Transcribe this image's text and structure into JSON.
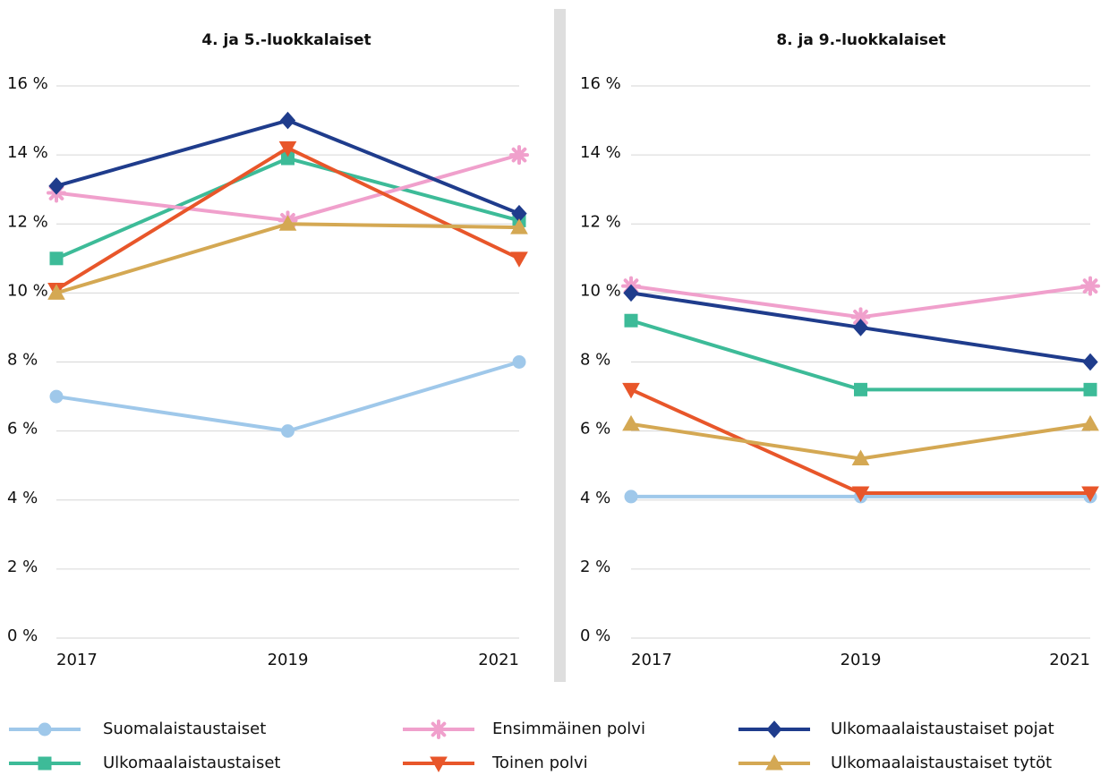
{
  "chart_data": [
    {
      "type": "line",
      "title": "4. ja 5.-luokkalaiset",
      "categories": [
        "2017",
        "2019",
        "2021"
      ],
      "ylim": [
        0,
        16
      ],
      "yticks": [
        {
          "value": 0,
          "label": "0 %"
        },
        {
          "value": 2,
          "label": "2 %"
        },
        {
          "value": 4,
          "label": "4 %"
        },
        {
          "value": 6,
          "label": "6 %"
        },
        {
          "value": 8,
          "label": "8 %"
        },
        {
          "value": 10,
          "label": "10 %"
        },
        {
          "value": 12,
          "label": "12 %"
        },
        {
          "value": 14,
          "label": "14 %"
        },
        {
          "value": 16,
          "label": "16 %"
        }
      ],
      "grid": true,
      "series": [
        {
          "name": "Suomalaistaustaiset",
          "color": "#9fc8ea",
          "marker": "circle",
          "values": [
            7,
            6,
            8
          ]
        },
        {
          "name": "Ulkomaalaistaustaiset",
          "color": "#3dbb98",
          "marker": "square",
          "values": [
            11,
            13.9,
            12.1
          ]
        },
        {
          "name": "Ensimmäinen polvi",
          "color": "#f0a0cc",
          "marker": "asterisk",
          "values": [
            12.9,
            12.1,
            14
          ]
        },
        {
          "name": "Toinen polvi",
          "color": "#e8562a",
          "marker": "triangle-down",
          "values": [
            10.1,
            14.2,
            11
          ]
        },
        {
          "name": "Ulkomaalaistaustaiset pojat",
          "color": "#1f3c8c",
          "marker": "diamond",
          "values": [
            13.1,
            15,
            12.3
          ]
        },
        {
          "name": "Ulkomaalaistaustaiset tytöt",
          "color": "#d4a853",
          "marker": "triangle-up",
          "values": [
            10,
            12,
            11.9
          ]
        }
      ]
    },
    {
      "type": "line",
      "title": "8. ja 9.-luokkalaiset",
      "categories": [
        "2017",
        "2019",
        "2021"
      ],
      "ylim": [
        0,
        16
      ],
      "yticks": [
        {
          "value": 0,
          "label": "0 %"
        },
        {
          "value": 2,
          "label": "2 %"
        },
        {
          "value": 4,
          "label": "4 %"
        },
        {
          "value": 6,
          "label": "6 %"
        },
        {
          "value": 8,
          "label": "8 %"
        },
        {
          "value": 10,
          "label": "10 %"
        },
        {
          "value": 12,
          "label": "12 %"
        },
        {
          "value": 14,
          "label": "14 %"
        },
        {
          "value": 16,
          "label": "16 %"
        }
      ],
      "grid": true,
      "series": [
        {
          "color": "#9fc8ea",
          "marker": "circle",
          "values": [
            4.1,
            4.1,
            4.1
          ]
        },
        {
          "color": "#3dbb98",
          "marker": "square",
          "values": [
            9.2,
            7.2,
            7.2
          ]
        },
        {
          "color": "#f0a0cc",
          "marker": "asterisk",
          "values": [
            10.2,
            9.3,
            10.2
          ]
        },
        {
          "color": "#e8562a",
          "marker": "triangle-down",
          "values": [
            7.2,
            4.2,
            4.2
          ]
        },
        {
          "color": "#1f3c8c",
          "marker": "diamond",
          "values": [
            10,
            9,
            8
          ]
        },
        {
          "color": "#d4a853",
          "marker": "triangle-up",
          "values": [
            6.2,
            5.2,
            6.2
          ]
        }
      ]
    }
  ]
}
